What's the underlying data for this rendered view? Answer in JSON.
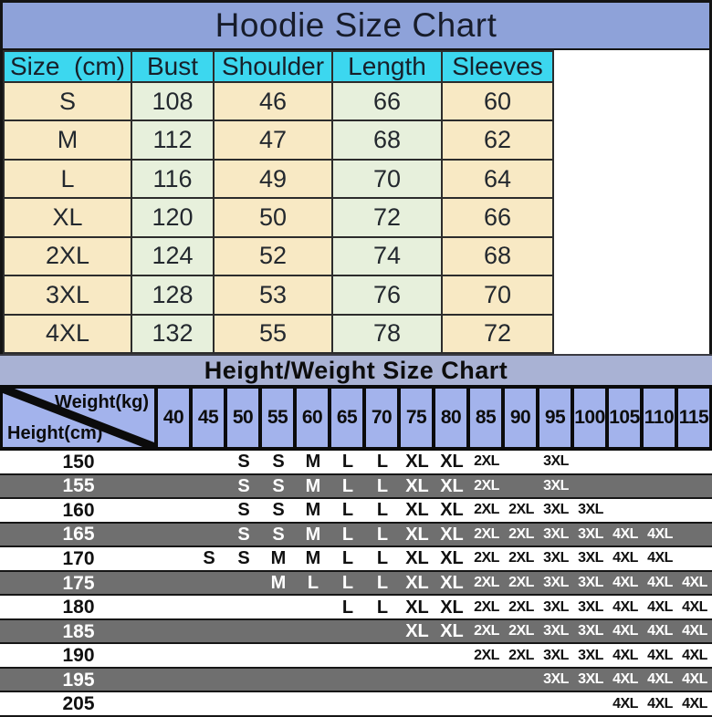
{
  "colors": {
    "hoodie_title_bg": "#8ea2d9",
    "hoodie_header_bg": "#3cd7ef",
    "cell_cream": "#f8e9c4",
    "cell_green": "#e7f0dc",
    "hw_title_bg": "#a9b2d4",
    "hw_header_cell_bg": "#a3b3ec",
    "row_gray": "#6f6f6f",
    "row_white": "#ffffff",
    "border_black": "#0b0b0b"
  },
  "hoodie_chart": {
    "title": "Hoodie Size Chart",
    "columns": [
      "Size  (cm)",
      "Bust",
      "Shoulder",
      "Length",
      "Sleeves"
    ],
    "rows": [
      {
        "size": "S",
        "bust": "108",
        "shoulder": "46",
        "length": "66",
        "sleeves": "60"
      },
      {
        "size": "M",
        "bust": "112",
        "shoulder": "47",
        "length": "68",
        "sleeves": "62"
      },
      {
        "size": "L",
        "bust": "116",
        "shoulder": "49",
        "length": "70",
        "sleeves": "64"
      },
      {
        "size": "XL",
        "bust": "120",
        "shoulder": "50",
        "length": "72",
        "sleeves": "66"
      },
      {
        "size": "2XL",
        "bust": "124",
        "shoulder": "52",
        "length": "74",
        "sleeves": "68"
      },
      {
        "size": "3XL",
        "bust": "128",
        "shoulder": "53",
        "length": "76",
        "sleeves": "70"
      },
      {
        "size": "4XL",
        "bust": "132",
        "shoulder": "55",
        "length": "78",
        "sleeves": "72"
      }
    ]
  },
  "height_weight_chart": {
    "title": "Height/Weight Size Chart",
    "corner_top": "Weight(kg)",
    "corner_bottom": "Height(cm)",
    "weights": [
      "40",
      "45",
      "50",
      "55",
      "60",
      "65",
      "70",
      "75",
      "80",
      "85",
      "90",
      "95",
      "100",
      "105",
      "110",
      "115"
    ],
    "rows": [
      {
        "height": "150",
        "sizes": [
          "",
          "",
          "S",
          "S",
          "M",
          "L",
          "L",
          "XL",
          "XL",
          "2XL",
          "",
          "3XL",
          "",
          "",
          "",
          ""
        ]
      },
      {
        "height": "155",
        "sizes": [
          "",
          "",
          "S",
          "S",
          "M",
          "L",
          "L",
          "XL",
          "XL",
          "2XL",
          "",
          "3XL",
          "",
          "",
          "",
          ""
        ]
      },
      {
        "height": "160",
        "sizes": [
          "",
          "",
          "S",
          "S",
          "M",
          "L",
          "L",
          "XL",
          "XL",
          "2XL",
          "2XL",
          "3XL",
          "3XL",
          "",
          "",
          ""
        ]
      },
      {
        "height": "165",
        "sizes": [
          "",
          "",
          "S",
          "S",
          "M",
          "L",
          "L",
          "XL",
          "XL",
          "2XL",
          "2XL",
          "3XL",
          "3XL",
          "4XL",
          "4XL",
          ""
        ]
      },
      {
        "height": "170",
        "sizes": [
          "",
          "S",
          "S",
          "M",
          "M",
          "L",
          "L",
          "XL",
          "XL",
          "2XL",
          "2XL",
          "3XL",
          "3XL",
          "4XL",
          "4XL",
          ""
        ]
      },
      {
        "height": "175",
        "sizes": [
          "",
          "",
          "",
          "M",
          "L",
          "L",
          "L",
          "XL",
          "XL",
          "2XL",
          "2XL",
          "3XL",
          "3XL",
          "4XL",
          "4XL",
          "4XL"
        ]
      },
      {
        "height": "180",
        "sizes": [
          "",
          "",
          "",
          "",
          "",
          "L",
          "L",
          "XL",
          "XL",
          "2XL",
          "2XL",
          "3XL",
          "3XL",
          "4XL",
          "4XL",
          "4XL"
        ]
      },
      {
        "height": "185",
        "sizes": [
          "",
          "",
          "",
          "",
          "",
          "",
          "",
          "XL",
          "XL",
          "2XL",
          "2XL",
          "3XL",
          "3XL",
          "4XL",
          "4XL",
          "4XL"
        ]
      },
      {
        "height": "190",
        "sizes": [
          "",
          "",
          "",
          "",
          "",
          "",
          "",
          "",
          "",
          "2XL",
          "2XL",
          "3XL",
          "3XL",
          "4XL",
          "4XL",
          "4XL"
        ]
      },
      {
        "height": "195",
        "sizes": [
          "",
          "",
          "",
          "",
          "",
          "",
          "",
          "",
          "",
          "",
          "",
          "3XL",
          "3XL",
          "4XL",
          "4XL",
          "4XL"
        ]
      },
      {
        "height": "205",
        "sizes": [
          "",
          "",
          "",
          "",
          "",
          "",
          "",
          "",
          "",
          "",
          "",
          "",
          "",
          "4XL",
          "4XL",
          "4XL"
        ]
      }
    ]
  },
  "chart_data": [
    {
      "type": "table",
      "title": "Hoodie Size Chart",
      "columns": [
        "Size (cm)",
        "Bust",
        "Shoulder",
        "Length",
        "Sleeves"
      ],
      "rows": [
        [
          "S",
          108,
          46,
          66,
          60
        ],
        [
          "M",
          112,
          47,
          68,
          62
        ],
        [
          "L",
          116,
          49,
          70,
          64
        ],
        [
          "XL",
          120,
          50,
          72,
          66
        ],
        [
          "2XL",
          124,
          52,
          74,
          68
        ],
        [
          "3XL",
          128,
          53,
          76,
          70
        ],
        [
          "4XL",
          132,
          55,
          78,
          72
        ]
      ]
    },
    {
      "type": "table",
      "title": "Height/Weight Size Chart",
      "xlabel": "Weight(kg)",
      "ylabel": "Height(cm)",
      "weights_kg": [
        40,
        45,
        50,
        55,
        60,
        65,
        70,
        75,
        80,
        85,
        90,
        95,
        100,
        105,
        110,
        115
      ],
      "heights_cm": [
        150,
        155,
        160,
        165,
        170,
        175,
        180,
        185,
        190,
        195,
        205
      ],
      "matrix": [
        [
          "",
          "",
          "S",
          "S",
          "M",
          "L",
          "L",
          "XL",
          "XL",
          "2XL",
          "",
          "3XL",
          "",
          "",
          "",
          ""
        ],
        [
          "",
          "",
          "S",
          "S",
          "M",
          "L",
          "L",
          "XL",
          "XL",
          "2XL",
          "",
          "3XL",
          "",
          "",
          "",
          ""
        ],
        [
          "",
          "",
          "S",
          "S",
          "M",
          "L",
          "L",
          "XL",
          "XL",
          "2XL",
          "2XL",
          "3XL",
          "3XL",
          "",
          "",
          ""
        ],
        [
          "",
          "",
          "S",
          "S",
          "M",
          "L",
          "L",
          "XL",
          "XL",
          "2XL",
          "2XL",
          "3XL",
          "3XL",
          "4XL",
          "4XL",
          ""
        ],
        [
          "",
          "S",
          "S",
          "M",
          "M",
          "L",
          "L",
          "XL",
          "XL",
          "2XL",
          "2XL",
          "3XL",
          "3XL",
          "4XL",
          "4XL",
          ""
        ],
        [
          "",
          "",
          "",
          "M",
          "L",
          "L",
          "L",
          "XL",
          "XL",
          "2XL",
          "2XL",
          "3XL",
          "3XL",
          "4XL",
          "4XL",
          "4XL"
        ],
        [
          "",
          "",
          "",
          "",
          "",
          "L",
          "L",
          "XL",
          "XL",
          "2XL",
          "2XL",
          "3XL",
          "3XL",
          "4XL",
          "4XL",
          "4XL"
        ],
        [
          "",
          "",
          "",
          "",
          "",
          "",
          "",
          "XL",
          "XL",
          "2XL",
          "2XL",
          "3XL",
          "3XL",
          "4XL",
          "4XL",
          "4XL"
        ],
        [
          "",
          "",
          "",
          "",
          "",
          "",
          "",
          "",
          "",
          "2XL",
          "2XL",
          "3XL",
          "3XL",
          "4XL",
          "4XL",
          "4XL"
        ],
        [
          "",
          "",
          "",
          "",
          "",
          "",
          "",
          "",
          "",
          "",
          "",
          "3XL",
          "3XL",
          "4XL",
          "4XL",
          "4XL"
        ],
        [
          "",
          "",
          "",
          "",
          "",
          "",
          "",
          "",
          "",
          "",
          "",
          "",
          "",
          "4XL",
          "4XL",
          "4XL"
        ]
      ]
    }
  ]
}
